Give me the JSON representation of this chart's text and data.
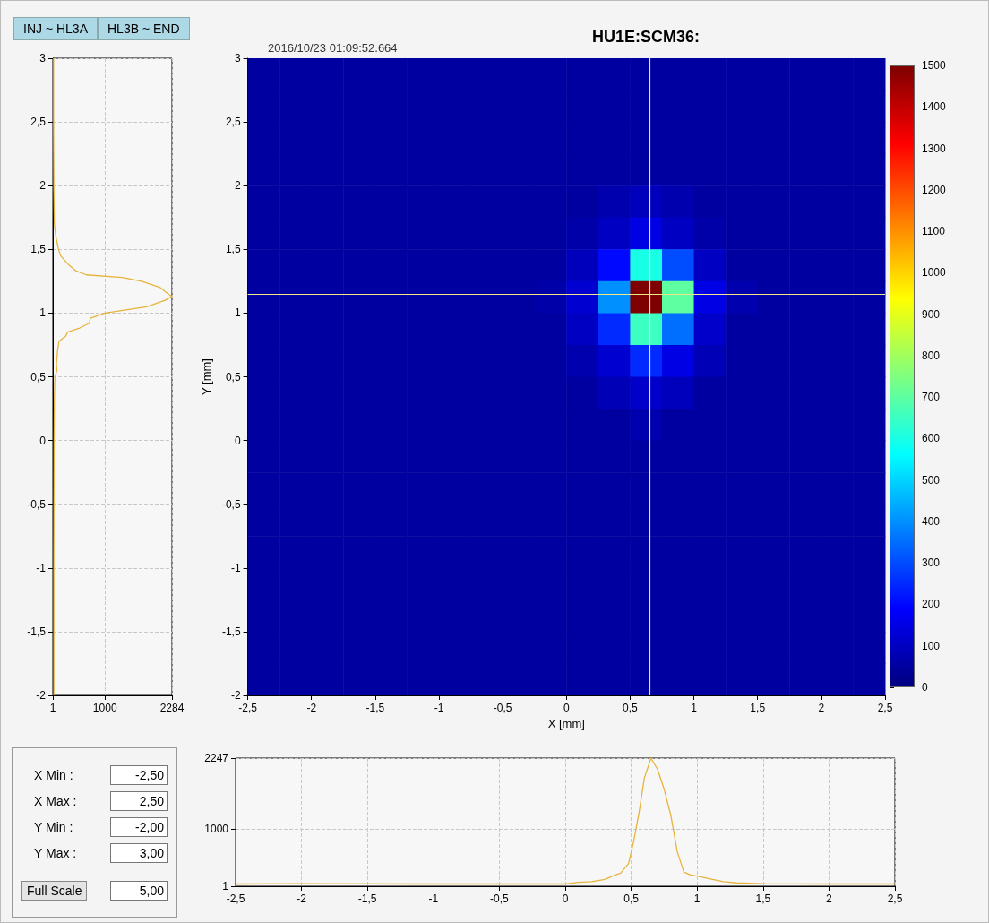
{
  "chart_data": [
    {
      "type": "line",
      "orientation": "horizontal",
      "grid": true,
      "xlim": [
        1,
        2284
      ],
      "xticks": [
        1,
        1000,
        2284
      ],
      "ylim": [
        -2,
        3
      ],
      "yticks": [
        {
          "value": -2,
          "label": "-2"
        },
        {
          "value": -1.5,
          "label": "-1,5"
        },
        {
          "value": -1,
          "label": "-1"
        },
        {
          "value": -0.5,
          "label": "-0,5"
        },
        {
          "value": 0,
          "label": "0"
        },
        {
          "value": 0.5,
          "label": "0,5"
        },
        {
          "value": 1,
          "label": "1"
        },
        {
          "value": 1.5,
          "label": "1,5"
        },
        {
          "value": 2,
          "label": "2"
        },
        {
          "value": 2.5,
          "label": "2,5"
        },
        {
          "value": 3,
          "label": "3"
        }
      ],
      "series": [
        {
          "color": "#e6b43c",
          "x": [
            -2,
            -1,
            0,
            0.3,
            0.5,
            0.55,
            0.6,
            0.7,
            0.78,
            0.82,
            0.85,
            0.88,
            0.92,
            0.96,
            1.0,
            1.05,
            1.1,
            1.13,
            1.17,
            1.2,
            1.25,
            1.28,
            1.3,
            1.33,
            1.38,
            1.45,
            1.5,
            1.6,
            1.7,
            2,
            2.5,
            3
          ],
          "values": [
            20,
            20,
            25,
            30,
            40,
            80,
            70,
            90,
            120,
            250,
            280,
            500,
            700,
            720,
            1000,
            1800,
            2150,
            2284,
            2150,
            2060,
            1700,
            1330,
            640,
            450,
            300,
            150,
            110,
            60,
            30,
            20,
            15,
            15
          ]
        }
      ]
    },
    {
      "type": "heatmap",
      "title": "HU1E:SCM36:",
      "xlabel": "X [mm]",
      "ylabel": "Y [mm]",
      "annotations": [
        "2016/10/23 01:09:52.664"
      ],
      "xlim": [
        -2.5,
        2.5
      ],
      "xticks": [
        {
          "value": -2.5,
          "label": "-2,5"
        },
        {
          "value": -2,
          "label": "-2"
        },
        {
          "value": -1.5,
          "label": "-1,5"
        },
        {
          "value": -1,
          "label": "-1"
        },
        {
          "value": -0.5,
          "label": "-0,5"
        },
        {
          "value": 0,
          "label": "0"
        },
        {
          "value": 0.5,
          "label": "0,5"
        },
        {
          "value": 1,
          "label": "1"
        },
        {
          "value": 1.5,
          "label": "1,5"
        },
        {
          "value": 2,
          "label": "2"
        },
        {
          "value": 2.5,
          "label": "2,5"
        }
      ],
      "ylim": [
        -2,
        3
      ],
      "yticks": [
        {
          "value": -2,
          "label": "-2"
        },
        {
          "value": -1.5,
          "label": "-1,5"
        },
        {
          "value": -1,
          "label": "-1"
        },
        {
          "value": -0.5,
          "label": "-0,5"
        },
        {
          "value": 0,
          "label": "0"
        },
        {
          "value": 0.5,
          "label": "0,5"
        },
        {
          "value": 1,
          "label": "1"
        },
        {
          "value": 1.5,
          "label": "1,5"
        },
        {
          "value": 2,
          "label": "2"
        },
        {
          "value": 2.5,
          "label": "2,5"
        },
        {
          "value": 3,
          "label": "3"
        }
      ],
      "clim": [
        0,
        1500
      ],
      "cticks": [
        0,
        100,
        200,
        300,
        400,
        500,
        600,
        700,
        800,
        900,
        1000,
        1100,
        1200,
        1300,
        1400,
        1500
      ],
      "ref_lines": [
        {
          "axis": "x",
          "value": 0.65,
          "color": "#f0e68c"
        },
        {
          "axis": "y",
          "value": 1.15,
          "color": "#f0e68c"
        }
      ],
      "cells": [
        [
          50,
          50,
          50,
          50,
          50,
          50,
          50,
          50,
          50,
          50,
          50,
          50,
          50,
          50,
          50,
          50,
          50,
          50,
          50,
          50
        ],
        [
          50,
          50,
          50,
          50,
          50,
          50,
          50,
          50,
          50,
          50,
          50,
          50,
          50,
          50,
          50,
          50,
          50,
          50,
          50,
          50
        ],
        [
          50,
          50,
          50,
          50,
          50,
          50,
          50,
          50,
          50,
          50,
          50,
          50,
          50,
          50,
          50,
          50,
          50,
          50,
          50,
          50
        ],
        [
          50,
          50,
          50,
          50,
          50,
          50,
          50,
          50,
          50,
          50,
          50,
          50,
          50,
          50,
          50,
          50,
          50,
          50,
          50,
          50
        ],
        [
          50,
          50,
          50,
          50,
          50,
          50,
          50,
          50,
          50,
          50,
          50,
          70,
          90,
          70,
          50,
          50,
          50,
          50,
          50,
          50
        ],
        [
          50,
          50,
          50,
          50,
          50,
          50,
          50,
          50,
          50,
          50,
          60,
          100,
          150,
          100,
          60,
          50,
          50,
          50,
          50,
          50
        ],
        [
          50,
          50,
          50,
          50,
          50,
          50,
          50,
          50,
          50,
          50,
          90,
          200,
          600,
          300,
          100,
          50,
          50,
          50,
          50,
          50
        ],
        [
          50,
          50,
          50,
          50,
          50,
          50,
          50,
          50,
          50,
          60,
          120,
          400,
          1500,
          700,
          150,
          70,
          50,
          50,
          50,
          50
        ],
        [
          50,
          50,
          50,
          50,
          50,
          50,
          50,
          50,
          50,
          50,
          100,
          250,
          650,
          350,
          110,
          50,
          50,
          50,
          50,
          50
        ],
        [
          50,
          50,
          50,
          50,
          50,
          50,
          50,
          50,
          50,
          50,
          70,
          120,
          250,
          150,
          80,
          50,
          50,
          50,
          50,
          50
        ],
        [
          50,
          50,
          50,
          50,
          50,
          50,
          50,
          50,
          50,
          50,
          50,
          80,
          110,
          90,
          50,
          50,
          50,
          50,
          50,
          50
        ],
        [
          50,
          50,
          50,
          50,
          50,
          50,
          50,
          50,
          50,
          50,
          50,
          50,
          70,
          50,
          50,
          50,
          50,
          50,
          50,
          50
        ],
        [
          50,
          50,
          50,
          50,
          50,
          50,
          50,
          50,
          50,
          50,
          50,
          50,
          50,
          50,
          50,
          50,
          50,
          50,
          50,
          50
        ],
        [
          50,
          50,
          50,
          50,
          50,
          50,
          50,
          50,
          50,
          50,
          50,
          50,
          50,
          50,
          50,
          50,
          50,
          50,
          50,
          50
        ],
        [
          50,
          50,
          50,
          50,
          50,
          50,
          50,
          50,
          50,
          50,
          50,
          50,
          50,
          50,
          50,
          50,
          50,
          50,
          50,
          50
        ],
        [
          50,
          50,
          50,
          50,
          50,
          50,
          50,
          50,
          50,
          50,
          50,
          50,
          50,
          50,
          50,
          50,
          50,
          50,
          50,
          50
        ],
        [
          50,
          50,
          50,
          50,
          50,
          50,
          50,
          50,
          50,
          50,
          50,
          50,
          50,
          50,
          50,
          50,
          50,
          50,
          50,
          50
        ],
        [
          50,
          50,
          50,
          50,
          50,
          50,
          50,
          50,
          50,
          50,
          50,
          50,
          50,
          50,
          50,
          50,
          50,
          50,
          50,
          50
        ],
        [
          50,
          50,
          50,
          50,
          50,
          50,
          50,
          50,
          50,
          50,
          50,
          50,
          50,
          50,
          50,
          50,
          50,
          50,
          50,
          50
        ],
        [
          50,
          50,
          50,
          50,
          50,
          50,
          50,
          50,
          50,
          50,
          50,
          50,
          50,
          50,
          50,
          50,
          50,
          50,
          50,
          50
        ]
      ]
    },
    {
      "type": "line",
      "grid": true,
      "xlim": [
        -2.5,
        2.5
      ],
      "xticks": [
        {
          "value": -2.5,
          "label": "-2,5"
        },
        {
          "value": -2,
          "label": "-2"
        },
        {
          "value": -1.5,
          "label": "-1,5"
        },
        {
          "value": -1,
          "label": "-1"
        },
        {
          "value": -0.5,
          "label": "-0,5"
        },
        {
          "value": 0,
          "label": "0"
        },
        {
          "value": 0.5,
          "label": "0,5"
        },
        {
          "value": 1,
          "label": "1"
        },
        {
          "value": 1.5,
          "label": "1,5"
        },
        {
          "value": 2,
          "label": "2"
        },
        {
          "value": 2.5,
          "label": "2,5"
        }
      ],
      "ylim": [
        1,
        2247
      ],
      "yticks": [
        1,
        1000,
        2247
      ],
      "series": [
        {
          "color": "#e6b43c",
          "x": [
            -2.5,
            -2,
            -1,
            0,
            0.1,
            0.2,
            0.3,
            0.38,
            0.42,
            0.48,
            0.52,
            0.56,
            0.6,
            0.65,
            0.7,
            0.75,
            0.8,
            0.85,
            0.9,
            0.95,
            1.0,
            1.1,
            1.2,
            1.3,
            1.5,
            2,
            2.5
          ],
          "values": [
            40,
            45,
            40,
            40,
            70,
            80,
            120,
            200,
            230,
            400,
            800,
            1300,
            1900,
            2247,
            2050,
            1700,
            1250,
            600,
            250,
            200,
            180,
            130,
            80,
            60,
            45,
            40,
            40
          ]
        }
      ]
    },
    {
      "type": "other",
      "annotations": [
        "INJ ~ HL3A",
        "HL3B ~ END"
      ]
    },
    {
      "type": "other",
      "annotations": [
        "X Min :",
        "-2,50",
        "X Max :",
        "2,50",
        "Y Min :",
        "-2,00",
        "Y Max :",
        "3,00",
        "Full Scale",
        "5,00"
      ]
    }
  ]
}
